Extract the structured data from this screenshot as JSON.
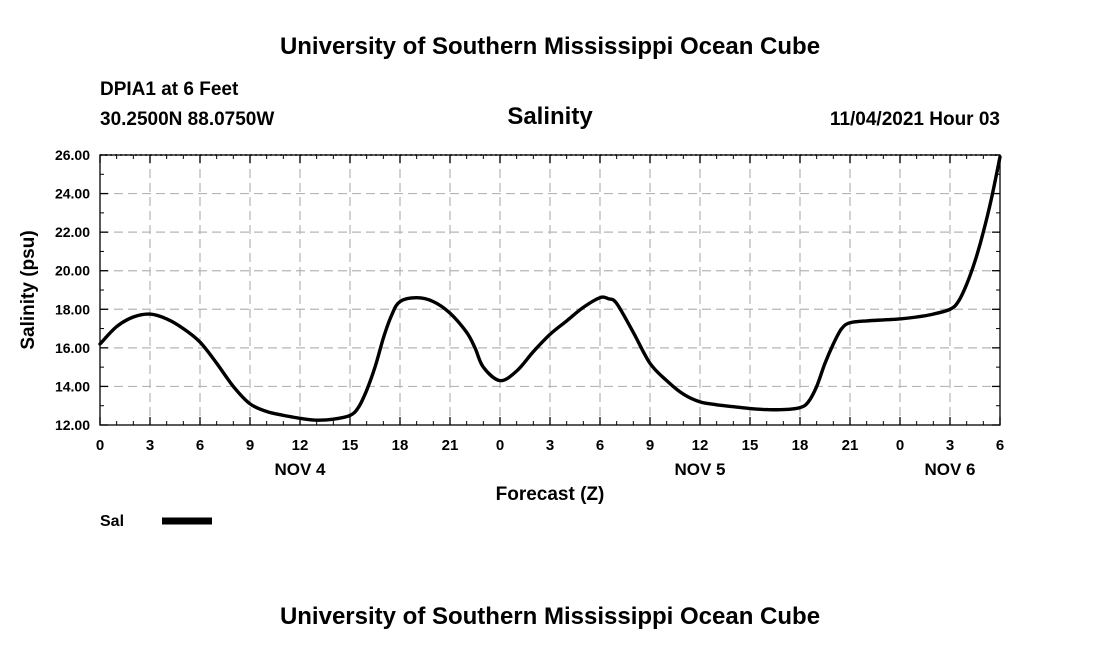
{
  "header": {
    "title": "University of Southern Mississippi Ocean Cube",
    "station": "DPIA1 at 6 Feet",
    "coords": "30.2500N  88.0750W",
    "timestamp": "11/04/2021 Hour 03"
  },
  "footer": {
    "title": "University of Southern Mississippi Ocean Cube"
  },
  "chart_data": {
    "type": "line",
    "title": "Salinity",
    "xlabel": "Forecast (Z)",
    "ylabel": "Salinity (psu)",
    "x_unit": "hours since NOV 4 00Z",
    "xlim": [
      0,
      54
    ],
    "ylim": [
      12,
      26
    ],
    "grid": true,
    "x_ticks": [
      {
        "x": 0,
        "label": "0"
      },
      {
        "x": 3,
        "label": "3"
      },
      {
        "x": 6,
        "label": "6"
      },
      {
        "x": 9,
        "label": "9"
      },
      {
        "x": 12,
        "label": "12"
      },
      {
        "x": 15,
        "label": "15"
      },
      {
        "x": 18,
        "label": "18"
      },
      {
        "x": 21,
        "label": "21"
      },
      {
        "x": 24,
        "label": "0"
      },
      {
        "x": 27,
        "label": "3"
      },
      {
        "x": 30,
        "label": "6"
      },
      {
        "x": 33,
        "label": "9"
      },
      {
        "x": 36,
        "label": "12"
      },
      {
        "x": 39,
        "label": "15"
      },
      {
        "x": 42,
        "label": "18"
      },
      {
        "x": 45,
        "label": "21"
      },
      {
        "x": 48,
        "label": "0"
      },
      {
        "x": 51,
        "label": "3"
      },
      {
        "x": 54,
        "label": "6"
      }
    ],
    "y_ticks": [
      {
        "y": 12,
        "label": "12.00"
      },
      {
        "y": 14,
        "label": "14.00"
      },
      {
        "y": 16,
        "label": "16.00"
      },
      {
        "y": 18,
        "label": "18.00"
      },
      {
        "y": 20,
        "label": "20.00"
      },
      {
        "y": 22,
        "label": "22.00"
      },
      {
        "y": 24,
        "label": "24.00"
      },
      {
        "y": 26,
        "label": "26.00"
      }
    ],
    "day_labels": [
      {
        "x": 12,
        "label": "NOV 4"
      },
      {
        "x": 36,
        "label": "NOV 5"
      },
      {
        "x": 51,
        "label": "NOV 6"
      }
    ],
    "legend": "bottom-left",
    "series": [
      {
        "name": "Sal",
        "color": "#000000",
        "x": [
          0,
          1,
          2,
          3,
          4,
          5,
          6,
          7,
          8,
          9,
          10,
          11,
          12,
          13,
          14,
          15,
          15.5,
          16,
          16.5,
          17,
          17.5,
          18,
          19,
          20,
          21,
          22,
          22.5,
          23,
          24,
          25,
          26,
          27,
          28,
          29,
          30,
          30.5,
          31,
          32,
          33,
          34,
          35,
          36,
          37,
          38,
          39,
          40,
          41,
          42,
          42.5,
          43,
          43.5,
          44,
          44.5,
          45,
          46,
          47,
          48,
          49,
          50,
          51,
          51.5,
          52,
          52.5,
          53,
          53.5,
          54
        ],
        "values": [
          16.2,
          17.1,
          17.6,
          17.75,
          17.5,
          17.0,
          16.3,
          15.2,
          14.0,
          13.1,
          12.7,
          12.5,
          12.35,
          12.25,
          12.3,
          12.5,
          12.9,
          13.8,
          15.0,
          16.5,
          17.7,
          18.4,
          18.6,
          18.4,
          17.8,
          16.8,
          16.0,
          15.0,
          14.3,
          14.8,
          15.8,
          16.7,
          17.4,
          18.1,
          18.6,
          18.55,
          18.3,
          16.8,
          15.2,
          14.3,
          13.6,
          13.2,
          13.05,
          12.95,
          12.85,
          12.8,
          12.8,
          12.9,
          13.2,
          14.0,
          15.2,
          16.2,
          17.0,
          17.3,
          17.4,
          17.45,
          17.5,
          17.6,
          17.75,
          18.0,
          18.4,
          19.3,
          20.5,
          22.0,
          23.8,
          25.9
        ]
      }
    ]
  }
}
